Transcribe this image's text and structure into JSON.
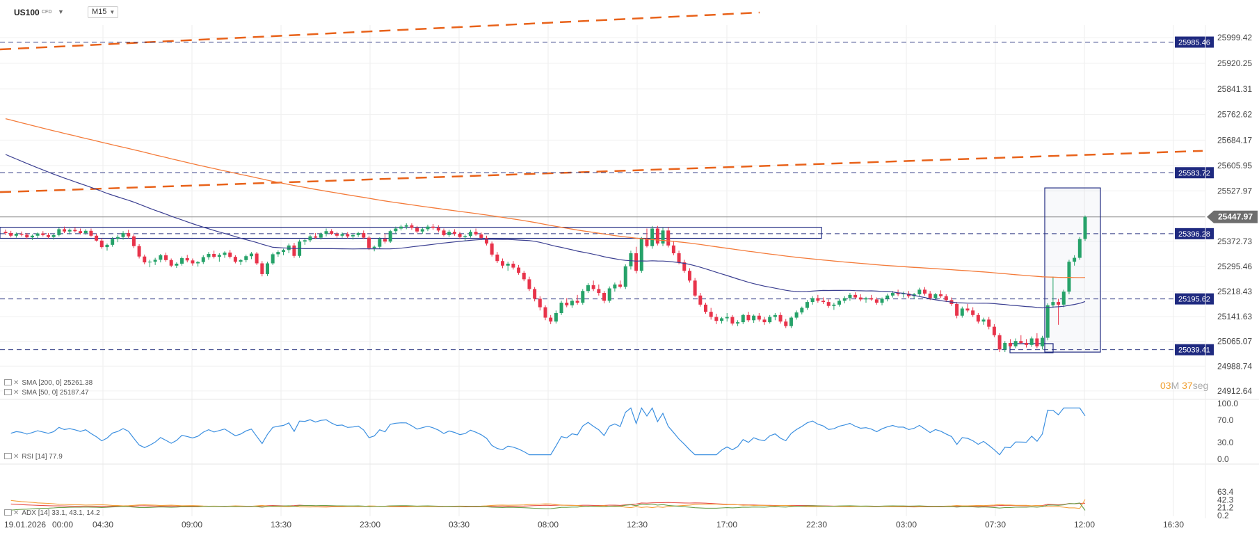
{
  "header": {
    "symbol": "US100",
    "symbol_sub": "CFD",
    "timeframe": "M15"
  },
  "colors": {
    "up": "#26a269",
    "down": "#e8334a",
    "sma200": "#f47b3a",
    "sma50": "#3b3f91",
    "rsi": "#3b8fe0",
    "adx_main": "#e8504a",
    "adx_plus": "#6a9f4a",
    "adx_minus": "#f4a03a",
    "trend_dash": "#e8621a",
    "level_box": "#1f2a80",
    "price_tag": "#6e6e6e"
  },
  "indicators": {
    "sma200": "SMA [200, 0]  25261.38",
    "sma50": "SMA [50, 0]  25187.47",
    "rsi": "RSI [14]  77.9",
    "adx": "ADX [14]  33.1, 43.1, 14.2"
  },
  "timer": {
    "minutes": "03",
    "m": "M",
    "seconds": "37",
    "seg": "seg"
  },
  "chart_data": {
    "type": "candlestick",
    "symbol": "US100",
    "timeframe": "M15",
    "x_tick_labels": [
      "19.01.2026",
      "00:00",
      "04:30",
      "09:00",
      "13:30",
      "23:00",
      "03:30",
      "08:00",
      "12:30",
      "17:00",
      "22:30",
      "03:00",
      "07:30",
      "12:00",
      "16:30"
    ],
    "y_tick_labels": [
      "25999.42",
      "25920.25",
      "25841.31",
      "25762.62",
      "25684.17",
      "25605.95",
      "25527.97",
      "25372.73",
      "25295.46",
      "25218.43",
      "25141.63",
      "25065.07",
      "24988.74",
      "24912.64"
    ],
    "ylim": [
      24912.64,
      26045
    ],
    "current_price": 25447.97,
    "horizontal_levels": [
      25985.46,
      25583.72,
      25396.28,
      25195.62,
      25039.41
    ],
    "candles": [
      [
        25402,
        25409,
        25392,
        25398
      ],
      [
        25398,
        25405,
        25385,
        25390
      ],
      [
        25390,
        25400,
        25384,
        25396
      ],
      [
        25396,
        25403,
        25388,
        25393
      ],
      [
        25393,
        25398,
        25380,
        25385
      ],
      [
        25385,
        25394,
        25377,
        25390
      ],
      [
        25390,
        25400,
        25383,
        25397
      ],
      [
        25397,
        25404,
        25388,
        25392
      ],
      [
        25392,
        25398,
        25382,
        25386
      ],
      [
        25386,
        25395,
        25378,
        25392
      ],
      [
        25392,
        25415,
        25388,
        25410
      ],
      [
        25410,
        25418,
        25398,
        25403
      ],
      [
        25403,
        25412,
        25394,
        25408
      ],
      [
        25408,
        25416,
        25400,
        25404
      ],
      [
        25404,
        25412,
        25394,
        25398
      ],
      [
        25398,
        25410,
        25393,
        25405
      ],
      [
        25405,
        25412,
        25387,
        25390
      ],
      [
        25390,
        25396,
        25372,
        25375
      ],
      [
        25375,
        25382,
        25350,
        25355
      ],
      [
        25355,
        25366,
        25344,
        25362
      ],
      [
        25362,
        25386,
        25356,
        25380
      ],
      [
        25380,
        25392,
        25370,
        25386
      ],
      [
        25386,
        25404,
        25378,
        25398
      ],
      [
        25398,
        25408,
        25382,
        25388
      ],
      [
        25388,
        25394,
        25352,
        25358
      ],
      [
        25358,
        25364,
        25320,
        25326
      ],
      [
        25326,
        25332,
        25302,
        25308
      ],
      [
        25308,
        25316,
        25293,
        25310
      ],
      [
        25310,
        25322,
        25300,
        25316
      ],
      [
        25316,
        25334,
        25308,
        25330
      ],
      [
        25330,
        25338,
        25310,
        25315
      ],
      [
        25315,
        25320,
        25293,
        25298
      ],
      [
        25298,
        25308,
        25291,
        25304
      ],
      [
        25304,
        25326,
        25298,
        25321
      ],
      [
        25321,
        25331,
        25308,
        25314
      ],
      [
        25314,
        25320,
        25298,
        25305
      ],
      [
        25305,
        25312,
        25295,
        25309
      ],
      [
        25309,
        25330,
        25303,
        25324
      ],
      [
        25324,
        25340,
        25316,
        25334
      ],
      [
        25334,
        25344,
        25320,
        25325
      ],
      [
        25325,
        25336,
        25310,
        25331
      ],
      [
        25331,
        25342,
        25322,
        25338
      ],
      [
        25338,
        25346,
        25320,
        25325
      ],
      [
        25325,
        25330,
        25305,
        25310
      ],
      [
        25310,
        25318,
        25300,
        25315
      ],
      [
        25315,
        25332,
        25308,
        25327
      ],
      [
        25327,
        25340,
        25318,
        25335
      ],
      [
        25335,
        25340,
        25300,
        25305
      ],
      [
        25305,
        25312,
        25265,
        25272
      ],
      [
        25272,
        25310,
        25266,
        25305
      ],
      [
        25305,
        25338,
        25300,
        25333
      ],
      [
        25333,
        25345,
        25325,
        25340
      ],
      [
        25340,
        25350,
        25330,
        25346
      ],
      [
        25346,
        25366,
        25336,
        25360
      ],
      [
        25360,
        25368,
        25322,
        25328
      ],
      [
        25328,
        25378,
        25322,
        25372
      ],
      [
        25372,
        25380,
        25362,
        25376
      ],
      [
        25376,
        25392,
        25370,
        25388
      ],
      [
        25388,
        25398,
        25380,
        25384
      ],
      [
        25384,
        25400,
        25378,
        25396
      ],
      [
        25396,
        25412,
        25388,
        25404
      ],
      [
        25404,
        25410,
        25392,
        25396
      ],
      [
        25396,
        25402,
        25384,
        25390
      ],
      [
        25390,
        25400,
        25384,
        25395
      ],
      [
        25395,
        25401,
        25382,
        25388
      ],
      [
        25388,
        25395,
        25378,
        25392
      ],
      [
        25392,
        25402,
        25386,
        25398
      ],
      [
        25398,
        25406,
        25380,
        25384
      ],
      [
        25384,
        25390,
        25346,
        25352
      ],
      [
        25352,
        25360,
        25342,
        25356
      ],
      [
        25356,
        25385,
        25350,
        25380
      ],
      [
        25380,
        25396,
        25366,
        25372
      ],
      [
        25372,
        25408,
        25368,
        25404
      ],
      [
        25404,
        25418,
        25396,
        25412
      ],
      [
        25412,
        25424,
        25406,
        25418
      ],
      [
        25418,
        25428,
        25410,
        25422
      ],
      [
        25422,
        25428,
        25408,
        25414
      ],
      [
        25414,
        25420,
        25398,
        25403
      ],
      [
        25403,
        25416,
        25396,
        25410
      ],
      [
        25410,
        25424,
        25404,
        25418
      ],
      [
        25418,
        25426,
        25408,
        25414
      ],
      [
        25414,
        25422,
        25400,
        25406
      ],
      [
        25406,
        25412,
        25388,
        25392
      ],
      [
        25392,
        25408,
        25386,
        25402
      ],
      [
        25402,
        25410,
        25390,
        25396
      ],
      [
        25396,
        25402,
        25380,
        25386
      ],
      [
        25386,
        25394,
        25374,
        25389
      ],
      [
        25389,
        25408,
        25384,
        25402
      ],
      [
        25402,
        25412,
        25390,
        25394
      ],
      [
        25394,
        25400,
        25377,
        25383
      ],
      [
        25383,
        25390,
        25360,
        25366
      ],
      [
        25366,
        25372,
        25326,
        25332
      ],
      [
        25332,
        25340,
        25306,
        25312
      ],
      [
        25312,
        25320,
        25290,
        25298
      ],
      [
        25298,
        25310,
        25282,
        25304
      ],
      [
        25304,
        25312,
        25286,
        25292
      ],
      [
        25292,
        25300,
        25270,
        25276
      ],
      [
        25276,
        25282,
        25250,
        25256
      ],
      [
        25256,
        25264,
        25220,
        25226
      ],
      [
        25226,
        25232,
        25188,
        25196
      ],
      [
        25196,
        25204,
        25160,
        25170
      ],
      [
        25170,
        25176,
        25130,
        25138
      ],
      [
        25138,
        25146,
        25118,
        25126
      ],
      [
        25126,
        25160,
        25120,
        25152
      ],
      [
        25152,
        25190,
        25146,
        25184
      ],
      [
        25184,
        25198,
        25170,
        25176
      ],
      [
        25176,
        25196,
        25168,
        25190
      ],
      [
        25190,
        25208,
        25178,
        25184
      ],
      [
        25184,
        25226,
        25178,
        25220
      ],
      [
        25220,
        25244,
        25214,
        25238
      ],
      [
        25238,
        25252,
        25220,
        25226
      ],
      [
        25226,
        25240,
        25206,
        25214
      ],
      [
        25214,
        25220,
        25182,
        25190
      ],
      [
        25190,
        25234,
        25184,
        25228
      ],
      [
        25228,
        25246,
        25218,
        25240
      ],
      [
        25240,
        25252,
        25228,
        25233
      ],
      [
        25233,
        25302,
        25226,
        25296
      ],
      [
        25296,
        25344,
        25286,
        25336
      ],
      [
        25336,
        25356,
        25274,
        25282
      ],
      [
        25282,
        25386,
        25276,
        25380
      ],
      [
        25380,
        25412,
        25354,
        25358
      ],
      [
        25358,
        25420,
        25350,
        25412
      ],
      [
        25412,
        25420,
        25360,
        25366
      ],
      [
        25366,
        25414,
        25358,
        25406
      ],
      [
        25406,
        25416,
        25354,
        25360
      ],
      [
        25360,
        25374,
        25330,
        25336
      ],
      [
        25336,
        25344,
        25302,
        25308
      ],
      [
        25308,
        25316,
        25276,
        25282
      ],
      [
        25282,
        25290,
        25246,
        25252
      ],
      [
        25252,
        25260,
        25202,
        25206
      ],
      [
        25206,
        25214,
        25172,
        25178
      ],
      [
        25178,
        25184,
        25150,
        25156
      ],
      [
        25156,
        25168,
        25132,
        25140
      ],
      [
        25140,
        25150,
        25118,
        25128
      ],
      [
        25128,
        25140,
        25120,
        25136
      ],
      [
        25136,
        25152,
        25126,
        25140
      ],
      [
        25140,
        25146,
        25114,
        25120
      ],
      [
        25120,
        25130,
        25112,
        25124
      ],
      [
        25124,
        25150,
        25118,
        25146
      ],
      [
        25146,
        25156,
        25124,
        25130
      ],
      [
        25130,
        25148,
        25122,
        25144
      ],
      [
        25144,
        25152,
        25126,
        25132
      ],
      [
        25132,
        25140,
        25116,
        25124
      ],
      [
        25124,
        25146,
        25120,
        25140
      ],
      [
        25140,
        25152,
        25130,
        25146
      ],
      [
        25146,
        25154,
        25120,
        25126
      ],
      [
        25126,
        25134,
        25106,
        25112
      ],
      [
        25112,
        25142,
        25106,
        25138
      ],
      [
        25138,
        25160,
        25132,
        25154
      ],
      [
        25154,
        25172,
        25148,
        25168
      ],
      [
        25168,
        25192,
        25162,
        25186
      ],
      [
        25186,
        25204,
        25178,
        25198
      ],
      [
        25198,
        25208,
        25184,
        25190
      ],
      [
        25190,
        25200,
        25180,
        25186
      ],
      [
        25186,
        25194,
        25168,
        25174
      ],
      [
        25174,
        25184,
        25162,
        25178
      ],
      [
        25178,
        25196,
        25172,
        25190
      ],
      [
        25190,
        25204,
        25182,
        25198
      ],
      [
        25198,
        25214,
        25190,
        25208
      ],
      [
        25208,
        25216,
        25196,
        25200
      ],
      [
        25200,
        25210,
        25188,
        25194
      ],
      [
        25194,
        25202,
        25184,
        25198
      ],
      [
        25198,
        25208,
        25190,
        25194
      ],
      [
        25194,
        25200,
        25178,
        25184
      ],
      [
        25184,
        25200,
        25176,
        25196
      ],
      [
        25196,
        25212,
        25188,
        25206
      ],
      [
        25206,
        25220,
        25200,
        25214
      ],
      [
        25214,
        25224,
        25204,
        25210
      ],
      [
        25210,
        25218,
        25200,
        25212
      ],
      [
        25212,
        25220,
        25198,
        25204
      ],
      [
        25204,
        25214,
        25196,
        25210
      ],
      [
        25210,
        25230,
        25204,
        25224
      ],
      [
        25224,
        25232,
        25206,
        25212
      ],
      [
        25212,
        25220,
        25192,
        25198
      ],
      [
        25198,
        25214,
        25192,
        25210
      ],
      [
        25210,
        25222,
        25198,
        25204
      ],
      [
        25204,
        25210,
        25186,
        25192
      ],
      [
        25192,
        25200,
        25174,
        25180
      ],
      [
        25180,
        25186,
        25136,
        25144
      ],
      [
        25144,
        25172,
        25138,
        25166
      ],
      [
        25166,
        25180,
        25154,
        25160
      ],
      [
        25160,
        25170,
        25140,
        25146
      ],
      [
        25146,
        25152,
        25120,
        25126
      ],
      [
        25126,
        25138,
        25116,
        25132
      ],
      [
        25132,
        25140,
        25102,
        25110
      ],
      [
        25110,
        25118,
        25078,
        25084
      ],
      [
        25084,
        25090,
        25032,
        25040
      ],
      [
        25040,
        25066,
        25032,
        25060
      ],
      [
        25060,
        25072,
        25044,
        25050
      ],
      [
        25050,
        25074,
        25044,
        25066
      ],
      [
        25066,
        25084,
        25056,
        25060
      ],
      [
        25060,
        25072,
        25046,
        25054
      ],
      [
        25054,
        25080,
        25048,
        25074
      ],
      [
        25074,
        25090,
        25044,
        25050
      ],
      [
        25050,
        25082,
        25040,
        25076
      ],
      [
        25076,
        25182,
        25068,
        25176
      ],
      [
        25176,
        25264,
        25168,
        25186
      ],
      [
        25186,
        25196,
        25116,
        25178
      ],
      [
        25178,
        25224,
        25170,
        25218
      ],
      [
        25218,
        25316,
        25210,
        25310
      ],
      [
        25310,
        25330,
        25298,
        25322
      ],
      [
        25322,
        25386,
        25316,
        25380
      ],
      [
        25380,
        25452,
        25374,
        25447.97
      ]
    ],
    "series": [
      {
        "name": "SMA [200, 0]",
        "values_start": 25750,
        "values_end": 25261.38
      },
      {
        "name": "SMA [50, 0]",
        "values_start": 25640,
        "values_end": 25187.47
      }
    ],
    "subcharts": [
      {
        "name": "RSI [14]",
        "ylim": [
          0.0,
          100.0
        ],
        "y_tick_labels": [
          "100.0",
          "70.0",
          "30.0",
          "0.0"
        ],
        "last": 77.9
      },
      {
        "name": "ADX [14]",
        "y_tick_labels": [
          "63.4",
          "42.3",
          "21.2",
          "0.2"
        ],
        "last": [
          33.1,
          43.1,
          14.2
        ]
      }
    ]
  }
}
